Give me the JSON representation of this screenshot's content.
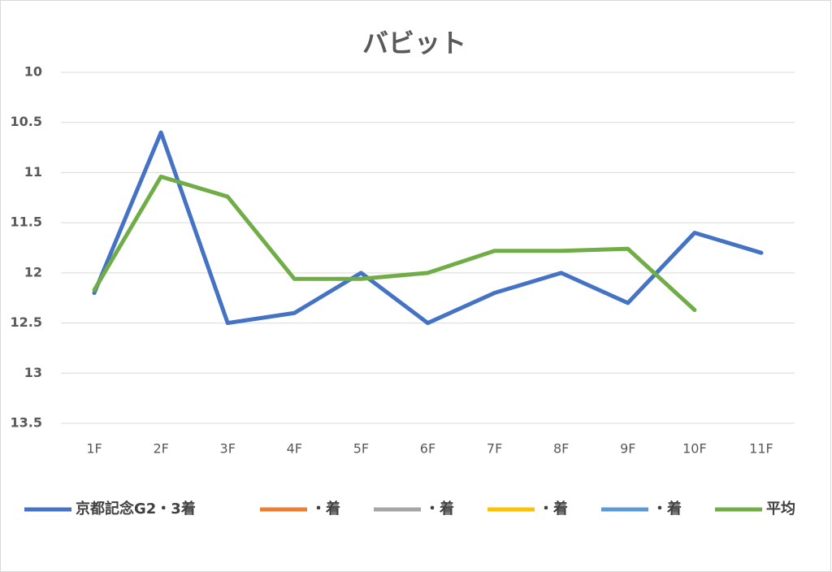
{
  "chart_data": {
    "type": "line",
    "title": "バビット",
    "categories": [
      "1F",
      "2F",
      "3F",
      "4F",
      "5F",
      "6F",
      "7F",
      "8F",
      "9F",
      "10F",
      "11F"
    ],
    "series": [
      {
        "name": "京都記念G2・3着",
        "color": "#4472c4",
        "values": [
          12.2,
          10.6,
          12.5,
          12.4,
          12.0,
          12.5,
          12.2,
          12.0,
          12.3,
          11.6,
          11.8
        ]
      },
      {
        "name": "・着",
        "color": "#ed7d31",
        "values": [
          null,
          null,
          null,
          null,
          null,
          null,
          null,
          null,
          null,
          null,
          null
        ]
      },
      {
        "name": "・着",
        "color": "#a5a5a5",
        "values": [
          null,
          null,
          null,
          null,
          null,
          null,
          null,
          null,
          null,
          null,
          null
        ]
      },
      {
        "name": "・着",
        "color": "#ffc000",
        "values": [
          null,
          null,
          null,
          null,
          null,
          null,
          null,
          null,
          null,
          null,
          null
        ]
      },
      {
        "name": "・着",
        "color": "#5b9bd5",
        "values": [
          null,
          null,
          null,
          null,
          null,
          null,
          null,
          null,
          null,
          null,
          null
        ]
      },
      {
        "name": "平均",
        "color": "#70ad47",
        "values": [
          12.17,
          11.04,
          11.24,
          12.06,
          12.06,
          12.0,
          11.78,
          11.78,
          11.76,
          12.37,
          null
        ]
      }
    ],
    "ylim": [
      10,
      13.5
    ],
    "y_inverted": true,
    "yticks": [
      10,
      10.5,
      11,
      11.5,
      12,
      12.5,
      13,
      13.5
    ],
    "grid": true,
    "legend": "bottom"
  }
}
